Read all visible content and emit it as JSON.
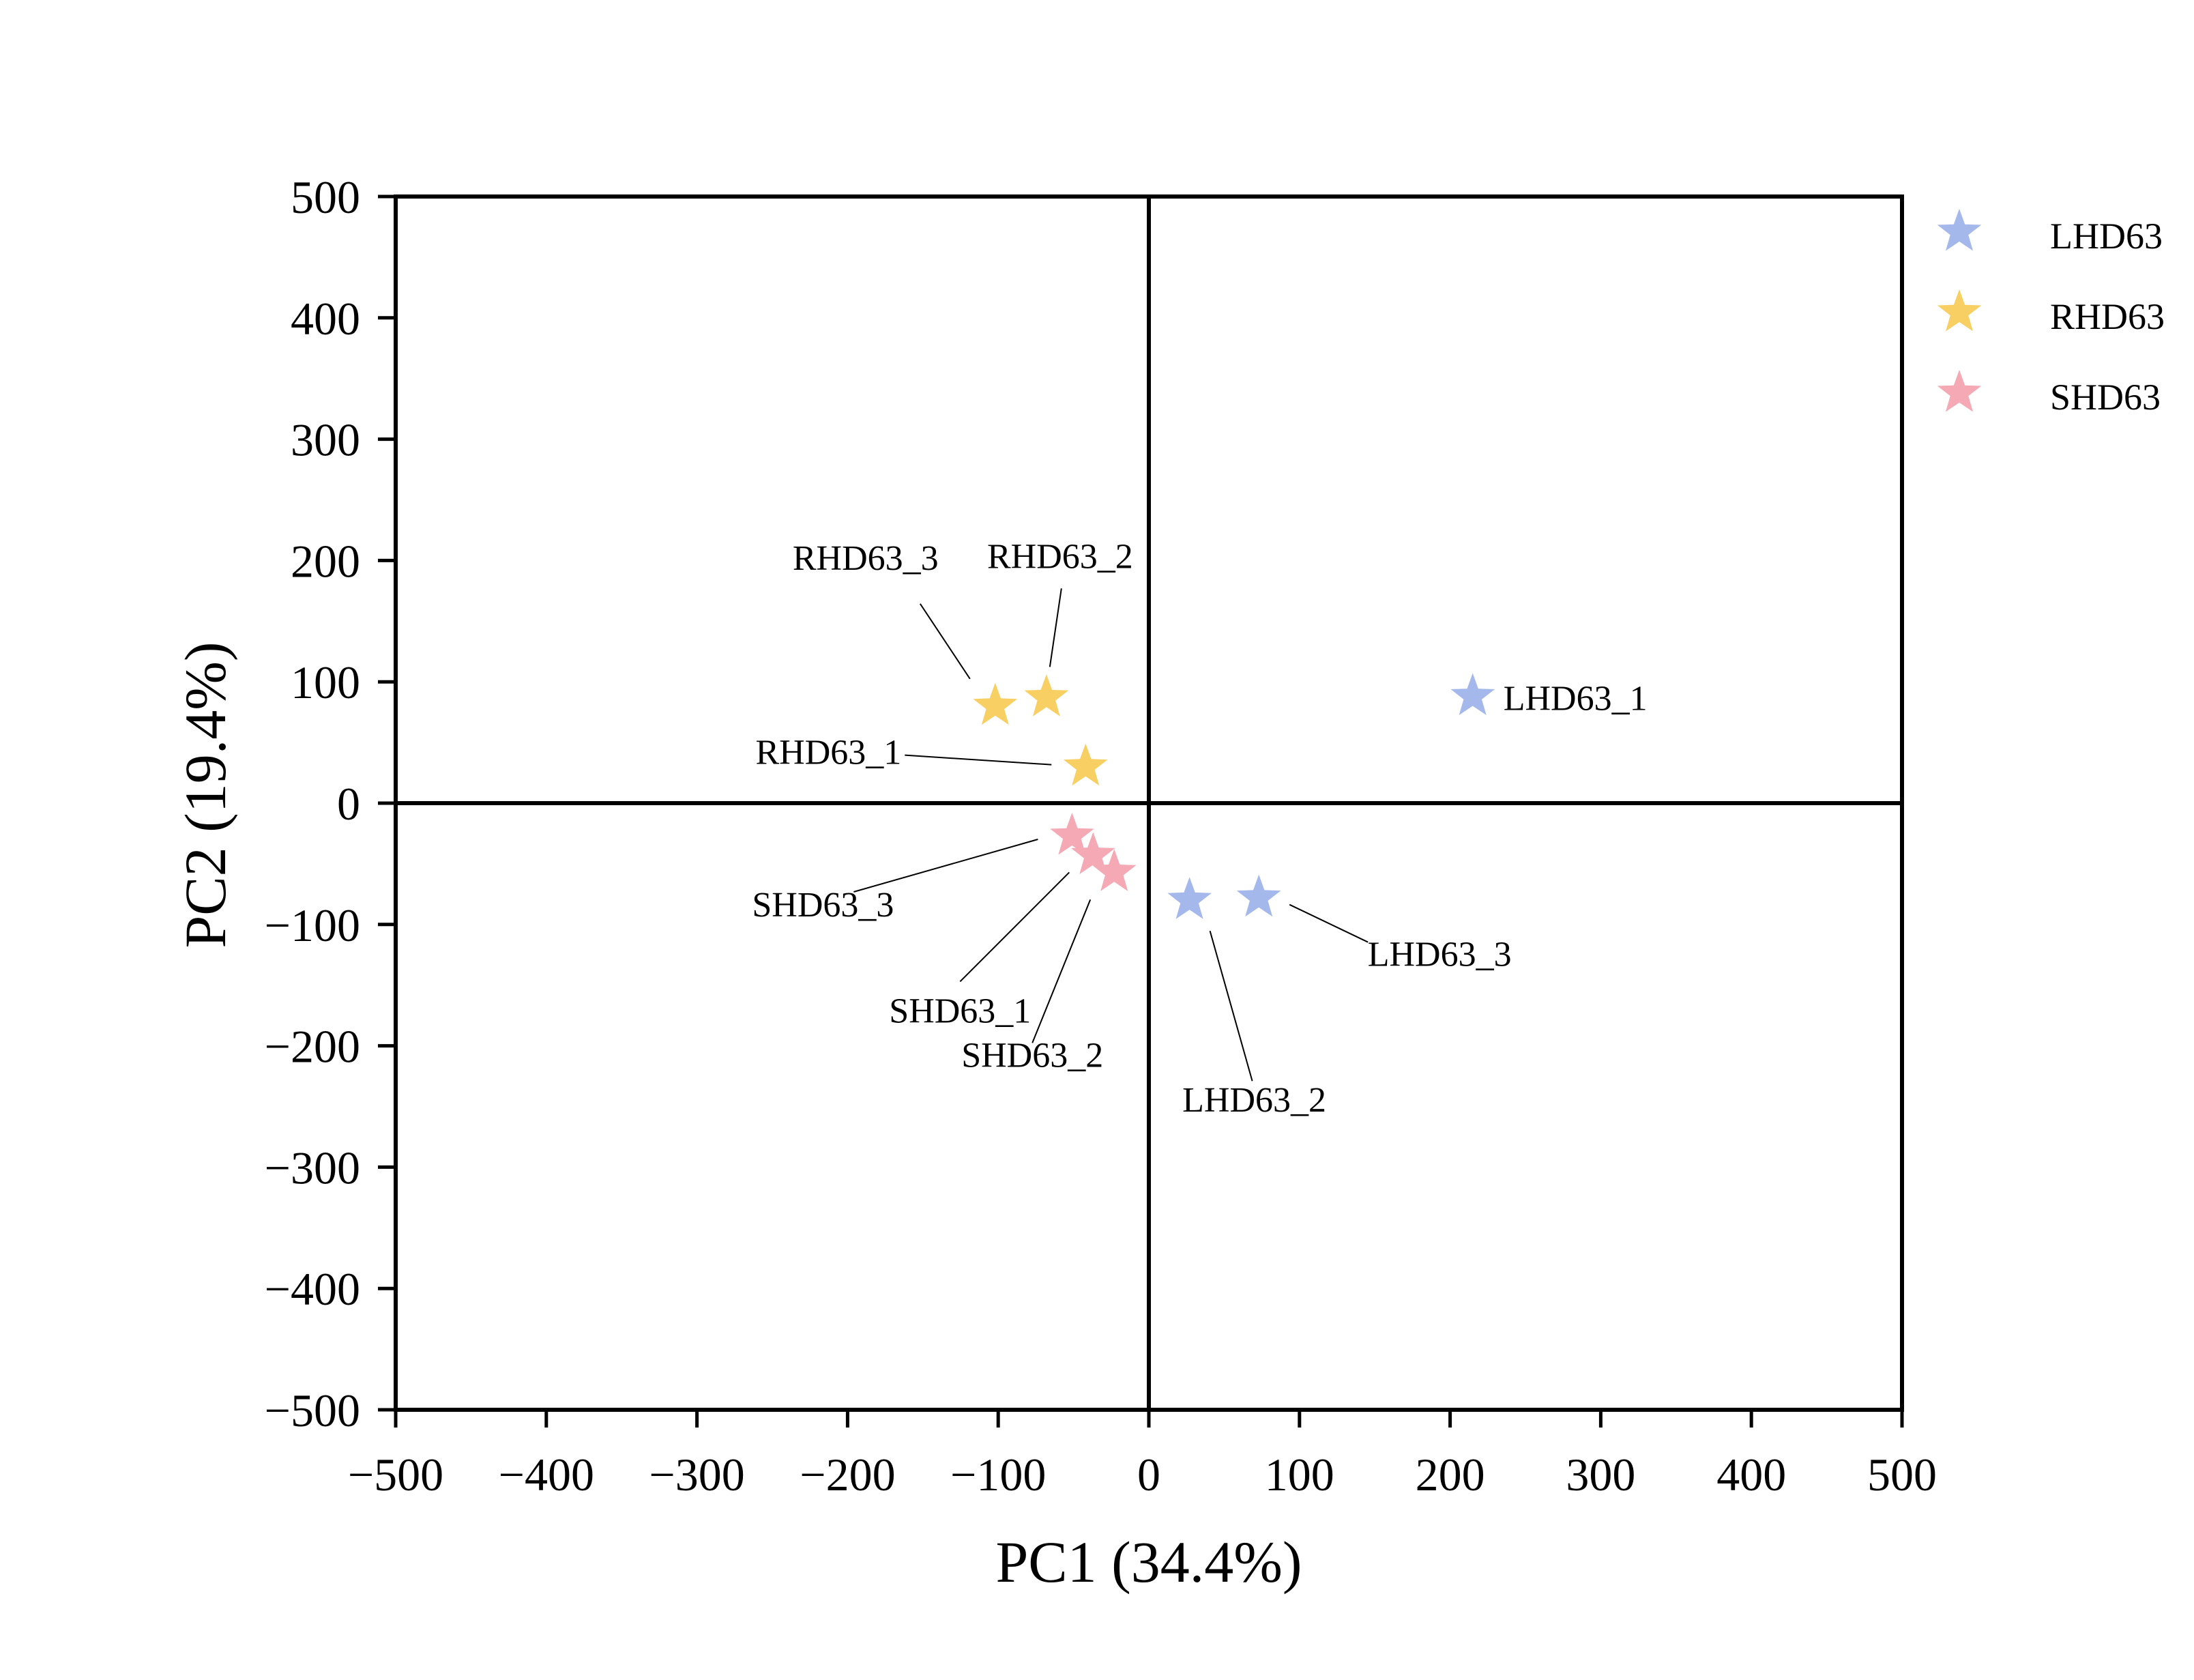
{
  "chart_data": {
    "type": "scatter",
    "xlabel": "PC1 (34.4%)",
    "ylabel": "PC2 (19.4%)",
    "xlim": [
      -500,
      500
    ],
    "ylim": [
      -500,
      500
    ],
    "xticks": [
      -500,
      -400,
      -300,
      -200,
      -100,
      0,
      100,
      200,
      300,
      400,
      500
    ],
    "yticks": [
      -500,
      -400,
      -300,
      -200,
      -100,
      0,
      100,
      200,
      300,
      400,
      500
    ],
    "xtick_labels": [
      "−500",
      "−400",
      "−300",
      "−200",
      "−100",
      "0",
      "100",
      "200",
      "300",
      "400",
      "500"
    ],
    "ytick_labels": [
      "−500",
      "−400",
      "−300",
      "−200",
      "−100",
      "0",
      "100",
      "200",
      "300",
      "400",
      "500"
    ],
    "grid": false,
    "zero_lines": true,
    "marker": "star",
    "legend_position": "right",
    "series": [
      {
        "name": "LHD63",
        "color": "#a4b8ec",
        "points": [
          {
            "label": "LHD63_1",
            "x": 215,
            "y": 88
          },
          {
            "label": "LHD63_2",
            "x": 27,
            "y": -80
          },
          {
            "label": "LHD63_3",
            "x": 73,
            "y": -78
          }
        ]
      },
      {
        "name": "RHD63",
        "color": "#f8cf62",
        "points": [
          {
            "label": "RHD63_1",
            "x": -42,
            "y": 30
          },
          {
            "label": "RHD63_2",
            "x": -68,
            "y": 87
          },
          {
            "label": "RHD63_3",
            "x": -102,
            "y": 80
          }
        ]
      },
      {
        "name": "SHD63",
        "color": "#f4a9b4",
        "points": [
          {
            "label": "SHD63_1",
            "x": -37,
            "y": -43
          },
          {
            "label": "SHD63_2",
            "x": -23,
            "y": -57
          },
          {
            "label": "SHD63_3",
            "x": -51,
            "y": -27
          }
        ]
      }
    ]
  }
}
